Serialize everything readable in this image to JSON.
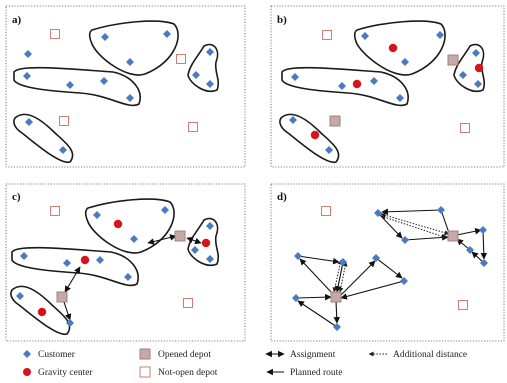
{
  "panels": [
    {
      "label": "a)",
      "customers": [
        [
          28,
          54
        ],
        [
          105,
          37
        ],
        [
          130,
          62
        ],
        [
          167,
          34
        ],
        [
          27,
          76
        ],
        [
          70,
          85
        ],
        [
          104,
          81
        ],
        [
          130,
          98
        ],
        [
          29,
          122
        ],
        [
          63,
          150
        ],
        [
          210,
          52
        ],
        [
          196,
          75
        ],
        [
          210,
          84
        ]
      ],
      "gravity_centers": [],
      "opened_depots": [],
      "closed_depots": [
        [
          55,
          34
        ],
        [
          181,
          59
        ],
        [
          64,
          121
        ],
        [
          193,
          127
        ]
      ]
    },
    {
      "label": "b)",
      "customers": [
        [
          365,
          36
        ],
        [
          405,
          62
        ],
        [
          440,
          35
        ],
        [
          295,
          77
        ],
        [
          342,
          86
        ],
        [
          374,
          81
        ],
        [
          400,
          98
        ],
        [
          293,
          120
        ],
        [
          329,
          150
        ],
        [
          476,
          53
        ],
        [
          463,
          75
        ],
        [
          478,
          84
        ]
      ],
      "gravity_centers": [
        [
          393,
          48
        ],
        [
          357,
          84
        ],
        [
          479,
          68
        ],
        [
          315,
          135
        ]
      ],
      "opened_depots": [
        [
          453,
          60
        ],
        [
          335,
          121
        ]
      ],
      "closed_depots": [
        [
          327,
          35
        ],
        [
          465,
          128
        ]
      ]
    },
    {
      "label": "c)",
      "customers": [
        [
          97,
          215
        ],
        [
          134,
          239
        ],
        [
          165,
          210
        ],
        [
          24,
          256
        ],
        [
          67,
          263
        ],
        [
          100,
          260
        ],
        [
          128,
          277
        ],
        [
          210,
          226
        ],
        [
          195,
          250
        ],
        [
          210,
          259
        ],
        [
          20,
          296
        ],
        [
          70,
          323
        ]
      ],
      "gravity_centers": [
        [
          118,
          224
        ],
        [
          85,
          260
        ],
        [
          206,
          243
        ],
        [
          42,
          312
        ]
      ],
      "opened_depots": [
        [
          180,
          236
        ],
        [
          62,
          297
        ]
      ],
      "closed_depots": [
        [
          55,
          211
        ],
        [
          188,
          303
        ]
      ]
    },
    {
      "label": "d)",
      "customers": [
        [
          378,
          213
        ],
        [
          441,
          210
        ],
        [
          405,
          240
        ],
        [
          483,
          230
        ],
        [
          470,
          250
        ],
        [
          484,
          263
        ],
        [
          298,
          256
        ],
        [
          343,
          262
        ],
        [
          376,
          258
        ],
        [
          404,
          281
        ],
        [
          296,
          298
        ],
        [
          337,
          327
        ]
      ],
      "gravity_centers": [],
      "opened_depots": [
        [
          453,
          236
        ],
        [
          336,
          297
        ]
      ],
      "closed_depots": [
        [
          326,
          211
        ],
        [
          463,
          305
        ]
      ]
    }
  ],
  "legend": {
    "customer": "Customer",
    "gravity": "Gravity center",
    "opened": "Opened depot",
    "closed": "Not-open depot",
    "assignment": "Assignment",
    "planned": "Planned route",
    "additional": "Additional distance"
  },
  "colors": {
    "customer": "#4a7bc0",
    "gravity": "#d8141b",
    "opened_fill": "#c5a9a9",
    "opened_stroke": "#a48080",
    "closed_stroke": "#d37c74"
  }
}
